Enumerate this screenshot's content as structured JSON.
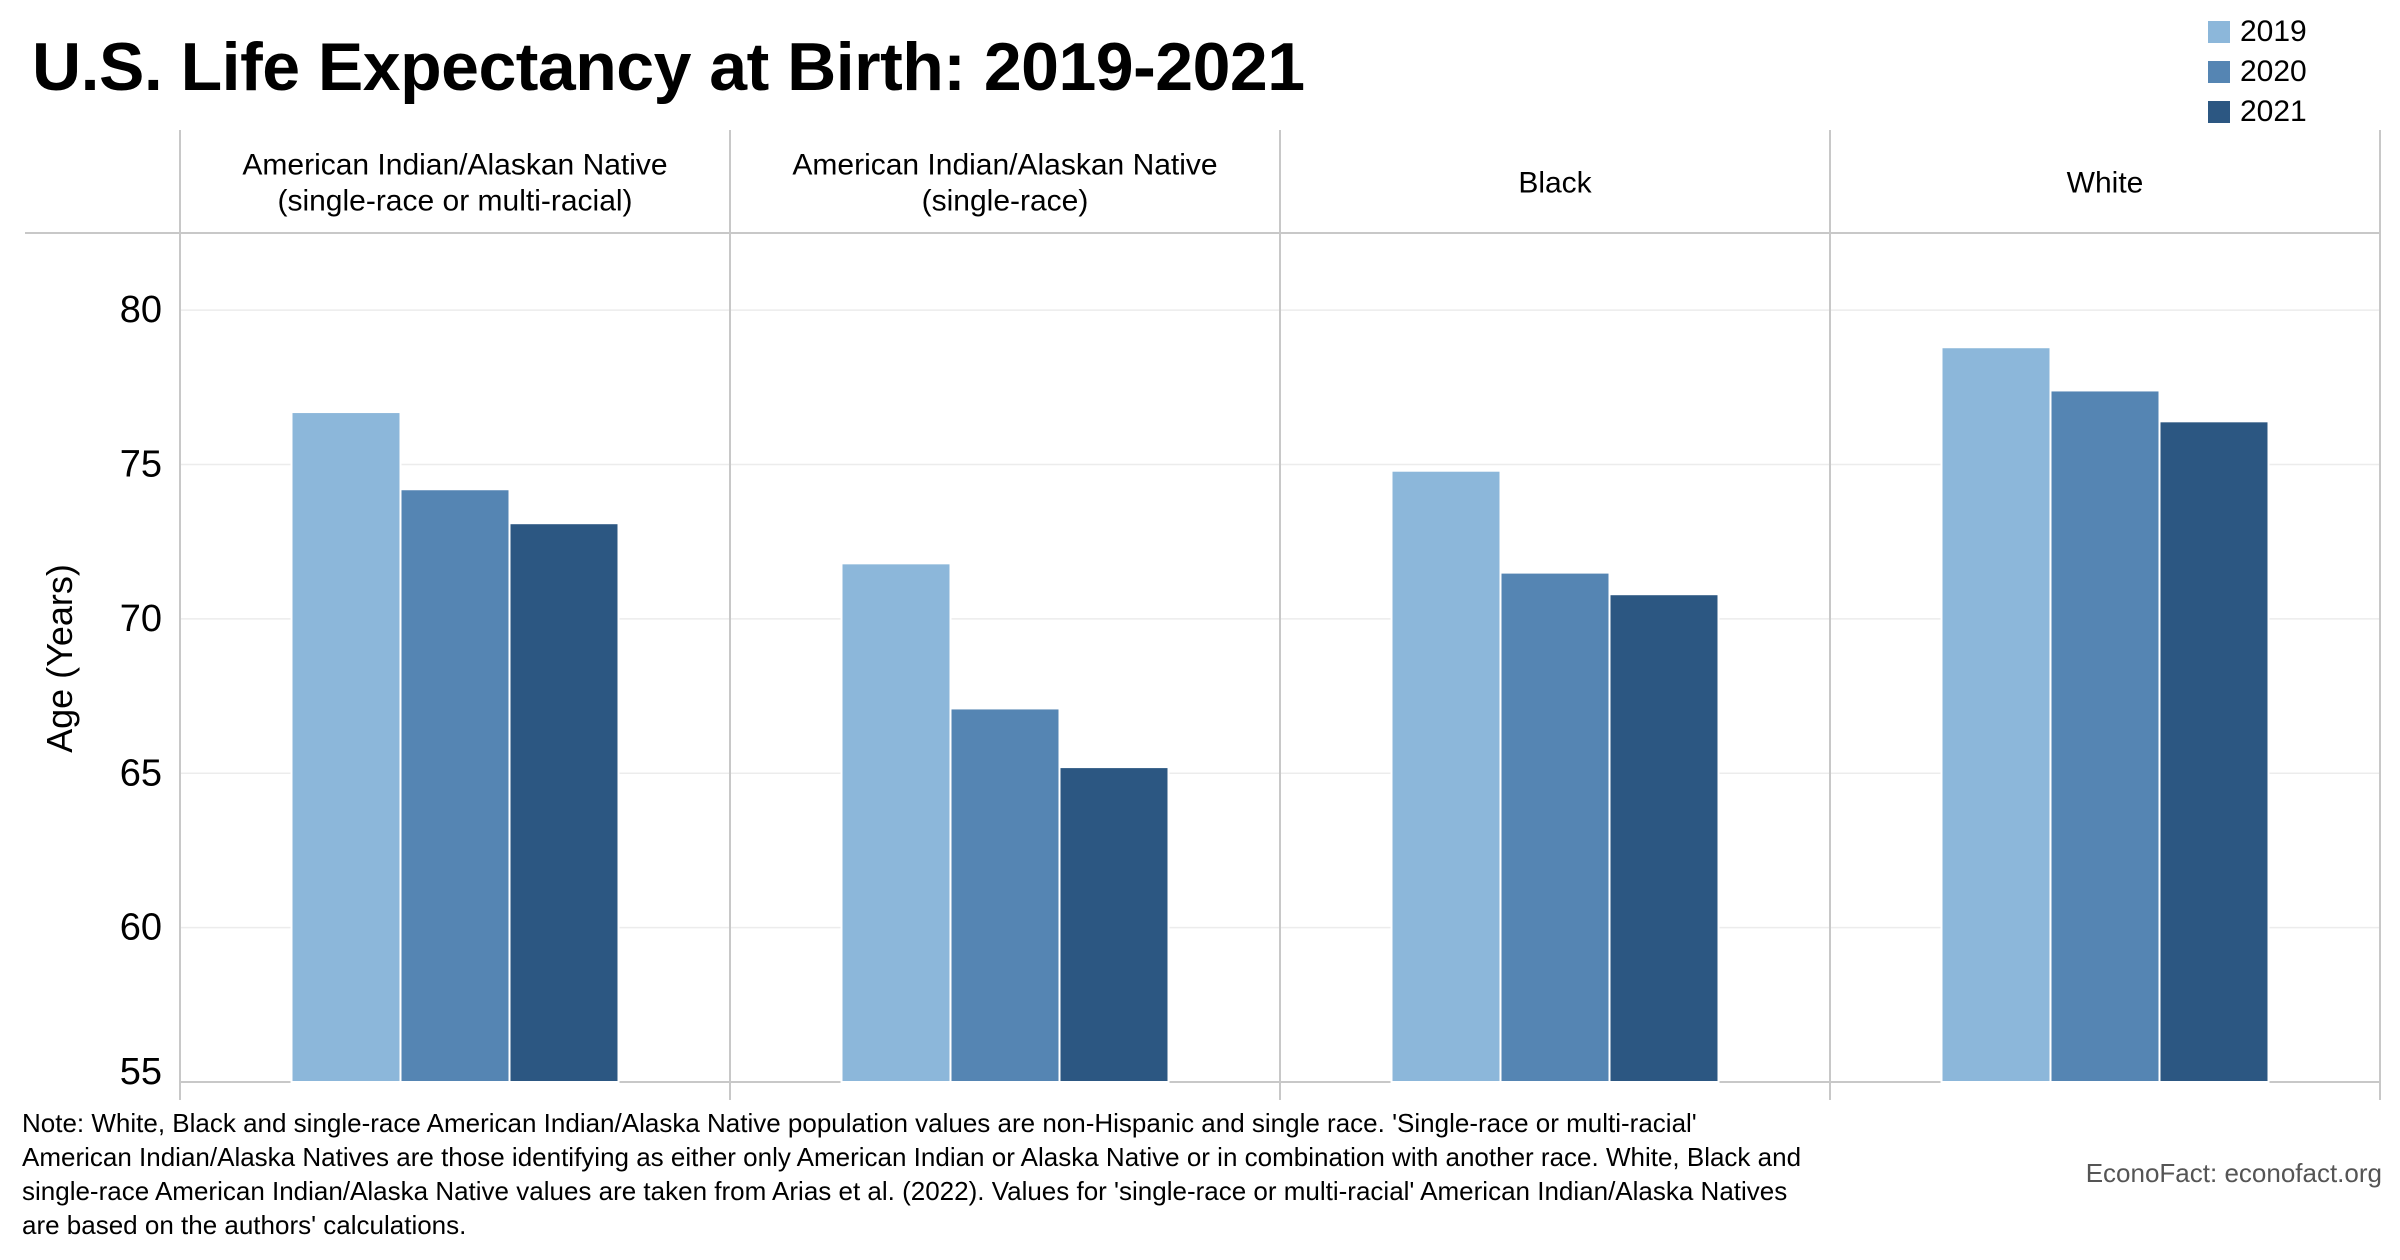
{
  "title": "U.S. Life Expectancy at Birth: 2019-2021",
  "note": "Note: White, Black and single-race American Indian/Alaska Native population values are non-Hispanic and single race. 'Single-race or multi-racial' American Indian/Alaska Natives are those identifying as either only American Indian or Alaska Native or in combination with another race. White, Black and single-race American Indian/Alaska Native values are taken from Arias et al. (2022). Values for 'single-race or multi-racial' American Indian/Alaska Natives are based on the authors' calculations.",
  "source": "EconoFact: econofact.org",
  "colors": {
    "2019": "#8cb7da",
    "2020": "#5585b3",
    "2021": "#2c5782"
  },
  "chart_data": {
    "type": "bar",
    "title": "U.S. Life Expectancy at Birth: 2019-2021",
    "xlabel": "",
    "ylabel": "Age (Years)",
    "ylim": [
      55,
      82.5
    ],
    "yticks": [
      55,
      60,
      65,
      70,
      75,
      80
    ],
    "grid": true,
    "legend_position": "top-right",
    "categories": [
      [
        "American Indian/Alaskan Native",
        "(single-race or multi-racial)"
      ],
      [
        "American Indian/Alaskan Native",
        "(single-race)"
      ],
      [
        "Black"
      ],
      [
        "White"
      ]
    ],
    "series": [
      {
        "name": "2019",
        "values": [
          76.7,
          71.8,
          74.8,
          78.8
        ]
      },
      {
        "name": "2020",
        "values": [
          74.2,
          67.1,
          71.5,
          77.4
        ]
      },
      {
        "name": "2021",
        "values": [
          73.1,
          65.2,
          70.8,
          76.4
        ]
      }
    ]
  }
}
